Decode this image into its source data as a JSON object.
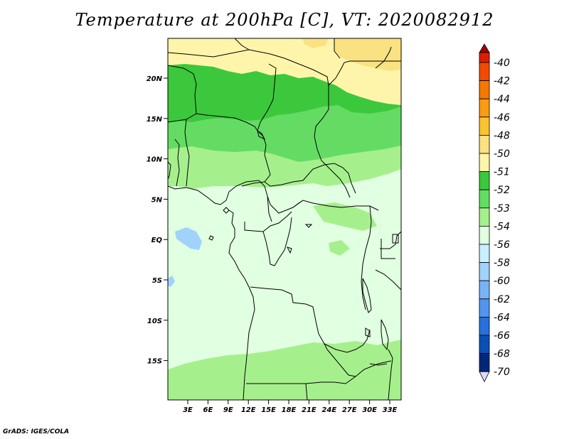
{
  "title": "Temperature at 200hPa [C], VT: 2020082912",
  "credit": "GrADS: IGES/COLA",
  "map": {
    "lat_ticks": [
      "20N",
      "15N",
      "10N",
      "5N",
      "EQ",
      "5S",
      "10S",
      "15S"
    ],
    "lon_ticks": [
      "3E",
      "6E",
      "9E",
      "12E",
      "15E",
      "18E",
      "21E",
      "24E",
      "27E",
      "30E",
      "33E"
    ]
  },
  "colorbar": {
    "labels": [
      "-40",
      "-42",
      "-44",
      "-46",
      "-48",
      "-50",
      "-51",
      "-52",
      "-53",
      "-54",
      "-56",
      "-58",
      "-60",
      "-62",
      "-64",
      "-66",
      "-68",
      "-70"
    ],
    "colors": [
      "#a50000",
      "#dc1e00",
      "#f04b00",
      "#f57800",
      "#fa9b14",
      "#fac332",
      "#fae182",
      "#fff5aa",
      "#3cc83c",
      "#64dc64",
      "#a5f08c",
      "#e1ffe1",
      "#c8f0ff",
      "#a0d2fa",
      "#78b4f5",
      "#5096f0",
      "#2870dc",
      "#0a50b4",
      "#00287a",
      "#000050",
      "#dcdcff"
    ]
  }
}
